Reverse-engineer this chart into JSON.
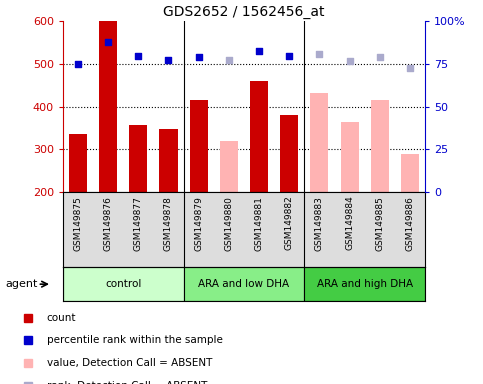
{
  "title": "GDS2652 / 1562456_at",
  "samples": [
    "GSM149875",
    "GSM149876",
    "GSM149877",
    "GSM149878",
    "GSM149879",
    "GSM149880",
    "GSM149881",
    "GSM149882",
    "GSM149883",
    "GSM149884",
    "GSM149885",
    "GSM149886"
  ],
  "groups": [
    {
      "label": "control",
      "start": 0,
      "end": 4,
      "color": "#ccffcc"
    },
    {
      "label": "ARA and low DHA",
      "start": 4,
      "end": 8,
      "color": "#88ee88"
    },
    {
      "label": "ARA and high DHA",
      "start": 8,
      "end": 12,
      "color": "#44cc44"
    }
  ],
  "count_values": [
    335,
    600,
    358,
    347,
    416,
    320,
    460,
    380,
    432,
    365,
    416,
    290
  ],
  "count_absent": [
    false,
    false,
    false,
    false,
    false,
    true,
    false,
    false,
    true,
    true,
    true,
    true
  ],
  "percentile_values": [
    500,
    552,
    518,
    510,
    516,
    510,
    530,
    518,
    522,
    507,
    517,
    490
  ],
  "percentile_absent": [
    false,
    false,
    false,
    false,
    false,
    true,
    false,
    false,
    true,
    true,
    true,
    true
  ],
  "ylim_left": [
    200,
    600
  ],
  "ylim_right": [
    0,
    100
  ],
  "yticks_left": [
    200,
    300,
    400,
    500,
    600
  ],
  "yticks_right": [
    0,
    25,
    50,
    75,
    100
  ],
  "color_bar_present": "#cc0000",
  "color_bar_absent": "#ffb3b3",
  "color_dot_present": "#0000cc",
  "color_dot_absent": "#aaaacc",
  "bar_width": 0.6,
  "agent_label": "agent",
  "left_label_color": "#cc0000",
  "right_label_color": "#0000cc",
  "grid_color": "black",
  "grid_linestyle": ":",
  "grid_linewidth": 0.8,
  "tick_area_bg": "#dddddd",
  "agent_area_bg": "#dddddd"
}
